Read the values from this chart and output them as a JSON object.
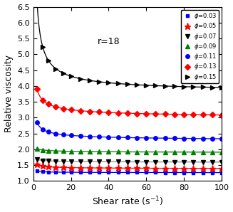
{
  "title_annotation": "r=18",
  "xlabel": "Shear rate (s$^{-1}$)",
  "ylabel": "Relative viscosity",
  "xlim": [
    2,
    100
  ],
  "ylim": [
    1,
    6.5
  ],
  "yticks": [
    1,
    1.5,
    2,
    2.5,
    3,
    3.5,
    4,
    4.5,
    5,
    5.5,
    6,
    6.5
  ],
  "xticks": [
    0,
    20,
    40,
    60,
    80,
    100
  ],
  "series": [
    {
      "label": "$\\phi$=0.03",
      "marker": "s",
      "line_color": "blue",
      "marker_color": "blue",
      "A": 0.08,
      "b": 0.55,
      "C": 1.26
    },
    {
      "label": "$\\phi$=0.05",
      "marker": "*",
      "line_color": "red",
      "marker_color": "red",
      "A": 0.22,
      "b": 0.55,
      "C": 1.38
    },
    {
      "label": "$\\phi$=0.07",
      "marker": "v",
      "line_color": "#888888",
      "marker_color": "black",
      "A": 0.14,
      "b": 0.45,
      "C": 1.58
    },
    {
      "label": "$\\phi$=0.09",
      "marker": "^",
      "line_color": "green",
      "marker_color": "green",
      "A": 0.19,
      "b": 0.4,
      "C": 1.88
    },
    {
      "label": "$\\phi$=0.11",
      "marker": "o",
      "line_color": "blue",
      "marker_color": "blue",
      "A": 0.85,
      "b": 0.5,
      "C": 2.25
    },
    {
      "label": "$\\phi$=0.13",
      "marker": "D",
      "line_color": "red",
      "marker_color": "red",
      "A": 1.35,
      "b": 0.5,
      "C": 2.95
    },
    {
      "label": "$\\phi$=0.15",
      "marker": ">",
      "line_color": "black",
      "marker_color": "black",
      "A": 4.8,
      "b": 0.75,
      "C": 3.8
    }
  ]
}
